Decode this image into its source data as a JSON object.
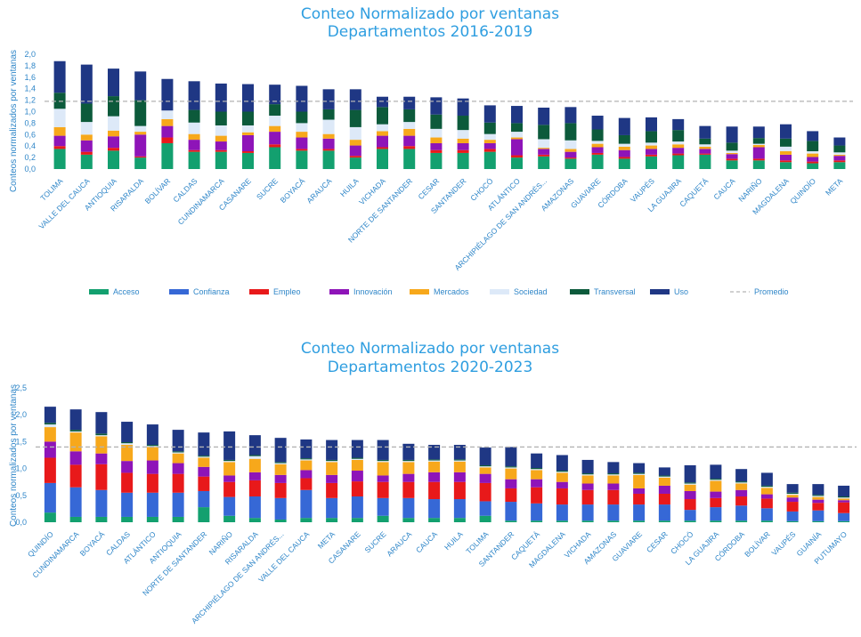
{
  "chart_data": [
    {
      "type": "bar",
      "stacked": true,
      "title_lines": [
        "Conteo Normalizado por ventanas",
        "Departamentos 2016-2019"
      ],
      "ylabel": "Conteos normalizados por ventanas",
      "ylim": [
        0,
        2.0
      ],
      "yticks": [
        "0,0",
        "0,2",
        "0,4",
        "0,6",
        "0,8",
        "1,0",
        "1,2",
        "1,4",
        "1,6",
        "1,8",
        "2,0"
      ],
      "average": 1.18,
      "legend": {
        "position": "bottom",
        "entries": [
          "Acceso",
          "Confianza",
          "Empleo",
          "Innovación",
          "Mercados",
          "Sociedad",
          "Transversal",
          "Uso",
          "Promedio"
        ]
      },
      "categories": [
        "TOLIMA",
        "VALLE DEL CAUCA",
        "ANTIOQUIA",
        "RISARALDA",
        "BOLÍVAR",
        "CALDAS",
        "CUNDINAMARCA",
        "CASANARE",
        "SUCRE",
        "BOYACÁ",
        "ARAUCA",
        "HUILA",
        "VICHADA",
        "NORTE DE SANTANDER",
        "CESAR",
        "SANTANDER",
        "CHOCÓ",
        "ATLÁNTICO",
        "ARCHIPIÉLAGO DE SAN ANDRÉS...",
        "AMAZONAS",
        "GUAVIARE",
        "CÓRDOBA",
        "VAUPÉS",
        "LA GUAJIRA",
        "CAQUETÁ",
        "CAUCA",
        "NARIÑO",
        "MAGDALENA",
        "QUINDÍO",
        "META"
      ],
      "series": [
        {
          "name": "Acceso",
          "color": "#13a06f",
          "values": [
            0.35,
            0.25,
            0.32,
            0.2,
            0.45,
            0.3,
            0.3,
            0.28,
            0.38,
            0.32,
            0.32,
            0.2,
            0.35,
            0.35,
            0.28,
            0.28,
            0.3,
            0.2,
            0.22,
            0.18,
            0.25,
            0.18,
            0.22,
            0.24,
            0.25,
            0.15,
            0.15,
            0.12,
            0.1,
            0.12
          ]
        },
        {
          "name": "Confianza",
          "color": "#3668d6",
          "values": [
            0,
            0,
            0,
            0,
            0,
            0,
            0,
            0,
            0,
            0,
            0,
            0,
            0,
            0,
            0,
            0,
            0,
            0,
            0,
            0,
            0,
            0,
            0,
            0,
            0,
            0,
            0,
            0,
            0,
            0
          ]
        },
        {
          "name": "Empleo",
          "color": "#e8191a",
          "values": [
            0.05,
            0.05,
            0.05,
            0.02,
            0.1,
            0.03,
            0.03,
            0.03,
            0.05,
            0.03,
            0.03,
            0.03,
            0.03,
            0.05,
            0.05,
            0.05,
            0.05,
            0.04,
            0.03,
            0.02,
            0.03,
            0.03,
            0.03,
            0.03,
            0.02,
            0.03,
            0.03,
            0.03,
            0.03,
            0.03
          ]
        },
        {
          "name": "Innovación",
          "color": "#8e14b8",
          "values": [
            0.18,
            0.2,
            0.2,
            0.38,
            0.2,
            0.18,
            0.15,
            0.28,
            0.22,
            0.2,
            0.18,
            0.18,
            0.2,
            0.18,
            0.12,
            0.12,
            0.1,
            0.28,
            0.1,
            0.1,
            0.1,
            0.12,
            0.1,
            0.1,
            0.08,
            0.08,
            0.2,
            0.1,
            0.08,
            0.08
          ]
        },
        {
          "name": "Mercados",
          "color": "#f7a81b",
          "values": [
            0.15,
            0.1,
            0.1,
            0.05,
            0.12,
            0.1,
            0.1,
            0.05,
            0.1,
            0.1,
            0.08,
            0.1,
            0.08,
            0.12,
            0.1,
            0.08,
            0.06,
            0.03,
            0.02,
            0.05,
            0.06,
            0.06,
            0.06,
            0.06,
            0.04,
            0.02,
            0.04,
            0.06,
            0.06,
            0.02
          ]
        },
        {
          "name": "Sociedad",
          "color": "#dde9f8",
          "values": [
            0.32,
            0.22,
            0.25,
            0.1,
            0.15,
            0.2,
            0.18,
            0.12,
            0.18,
            0.15,
            0.25,
            0.22,
            0.12,
            0.12,
            0.15,
            0.15,
            0.1,
            0.1,
            0.15,
            0.15,
            0.05,
            0.05,
            0.05,
            0.05,
            0.04,
            0.04,
            0.02,
            0.08,
            0.04,
            0.04
          ]
        },
        {
          "name": "Transversal",
          "color": "#0c5a3b",
          "values": [
            0.28,
            0.32,
            0.35,
            0.45,
            0.0,
            0.22,
            0.24,
            0.24,
            0.2,
            0.2,
            0.18,
            0.3,
            0.3,
            0.22,
            0.25,
            0.25,
            0.2,
            0.15,
            0.25,
            0.3,
            0.2,
            0.15,
            0.2,
            0.2,
            0.1,
            0.14,
            0.1,
            0.14,
            0.18,
            0.12
          ]
        },
        {
          "name": "Uso",
          "color": "#1f3784",
          "values": [
            0.55,
            0.68,
            0.48,
            0.5,
            0.55,
            0.5,
            0.49,
            0.48,
            0.34,
            0.45,
            0.35,
            0.36,
            0.18,
            0.22,
            0.3,
            0.3,
            0.3,
            0.3,
            0.3,
            0.28,
            0.24,
            0.3,
            0.24,
            0.19,
            0.22,
            0.28,
            0.2,
            0.25,
            0.17,
            0.14
          ]
        }
      ]
    },
    {
      "type": "bar",
      "stacked": true,
      "title_lines": [
        "Conteo Normalizado por ventanas",
        "Departamentos 2020-2023"
      ],
      "ylabel": "Conteos normalizados por ventanas",
      "ylim": [
        0,
        2.5
      ],
      "yticks": [
        "0,0",
        "0,5",
        "1,0",
        "1,5",
        "2,0",
        "2,5"
      ],
      "average": 1.4,
      "categories": [
        "QUINDÍO",
        "CUNDINAMARCA",
        "BOYACÁ",
        "CALDAS",
        "ATLÁNTICO",
        "ANTIOQUIA",
        "NORTE DE SANTANDER",
        "NARIÑO",
        "RISARALDA",
        "ARCHIPIÉLAGO DE SAN ANDRÉS...",
        "VALLE DEL CAUCA",
        "META",
        "CASANARE",
        "SUCRE",
        "ARAUCA",
        "CAUCA",
        "HUILA",
        "TOLIMA",
        "SANTANDER",
        "CAQUETÁ",
        "MAGDALENA",
        "VICHADA",
        "AMAZONAS",
        "GUAVIARE",
        "CESAR",
        "CHOCÓ",
        "LA GUAJIRA",
        "CÓRDOBA",
        "BOLÍVAR",
        "VAUPÉS",
        "GUAINÍA",
        "PUTUMAYO"
      ],
      "series": [
        {
          "name": "Acceso",
          "color": "#13a06f",
          "values": [
            0.18,
            0.1,
            0.1,
            0.1,
            0.1,
            0.1,
            0.28,
            0.12,
            0.08,
            0.05,
            0.08,
            0.08,
            0.08,
            0.12,
            0.08,
            0.08,
            0.08,
            0.12,
            0.03,
            0.03,
            0.03,
            0.03,
            0.03,
            0.03,
            0.03,
            0.03,
            0.03,
            0.03,
            0.03,
            0.02,
            0.02,
            0.02
          ]
        },
        {
          "name": "Confianza",
          "color": "#3668d6",
          "values": [
            0.55,
            0.55,
            0.5,
            0.45,
            0.45,
            0.45,
            0.3,
            0.35,
            0.4,
            0.4,
            0.52,
            0.37,
            0.4,
            0.33,
            0.37,
            0.35,
            0.35,
            0.27,
            0.35,
            0.32,
            0.3,
            0.3,
            0.3,
            0.3,
            0.3,
            0.2,
            0.25,
            0.28,
            0.23,
            0.18,
            0.2,
            0.15
          ]
        },
        {
          "name": "Empleo",
          "color": "#e8191a",
          "values": [
            0.47,
            0.42,
            0.48,
            0.37,
            0.35,
            0.35,
            0.27,
            0.28,
            0.3,
            0.28,
            0.22,
            0.28,
            0.28,
            0.3,
            0.3,
            0.32,
            0.32,
            0.34,
            0.25,
            0.3,
            0.3,
            0.27,
            0.27,
            0.2,
            0.2,
            0.2,
            0.17,
            0.17,
            0.18,
            0.18,
            0.14,
            0.2
          ]
        },
        {
          "name": "Innovación",
          "color": "#8e14b8",
          "values": [
            0.3,
            0.25,
            0.2,
            0.22,
            0.25,
            0.2,
            0.18,
            0.12,
            0.15,
            0.15,
            0.15,
            0.15,
            0.2,
            0.12,
            0.15,
            0.18,
            0.18,
            0.17,
            0.17,
            0.15,
            0.12,
            0.12,
            0.12,
            0.1,
            0.15,
            0.15,
            0.12,
            0.12,
            0.08,
            0.08,
            0.06,
            0.04
          ]
        },
        {
          "name": "Mercados",
          "color": "#f7a81b",
          "values": [
            0.27,
            0.35,
            0.32,
            0.3,
            0.25,
            0.18,
            0.17,
            0.25,
            0.25,
            0.2,
            0.18,
            0.24,
            0.2,
            0.25,
            0.22,
            0.2,
            0.2,
            0.12,
            0.2,
            0.17,
            0.17,
            0.15,
            0.15,
            0.25,
            0.15,
            0.12,
            0.2,
            0.12,
            0.12,
            0.05,
            0.05,
            0.03
          ]
        },
        {
          "name": "Sociedad",
          "color": "#dde9f8",
          "values": [
            0.05,
            0.02,
            0.02,
            0.03,
            0.02,
            0.02,
            0.02,
            0.02,
            0.05,
            0.02,
            0.02,
            0.02,
            0.02,
            0.02,
            0.02,
            0.02,
            0.02,
            0.02,
            0.02,
            0.02,
            0.02,
            0.02,
            0.02,
            0.02,
            0.02,
            0.02,
            0.02,
            0.02,
            0.02,
            0.02,
            0.02,
            0.02
          ]
        },
        {
          "name": "Transversal",
          "color": "#0c5a3b",
          "values": [
            0.03,
            0.03,
            0.03,
            0.02,
            0.02,
            0.02,
            0.02,
            0.02,
            0.02,
            0.02,
            0.02,
            0.02,
            0.02,
            0.02,
            0.02,
            0.02,
            0.02,
            0.02,
            0.02,
            0.02,
            0.02,
            0.02,
            0.02,
            0.02,
            0.02,
            0.02,
            0.02,
            0.02,
            0.02,
            0.02,
            0.02,
            0.02
          ]
        },
        {
          "name": "Uso",
          "color": "#1f3784",
          "values": [
            0.3,
            0.38,
            0.4,
            0.38,
            0.38,
            0.4,
            0.43,
            0.53,
            0.37,
            0.45,
            0.35,
            0.37,
            0.33,
            0.37,
            0.3,
            0.27,
            0.27,
            0.33,
            0.36,
            0.27,
            0.29,
            0.25,
            0.21,
            0.18,
            0.15,
            0.32,
            0.26,
            0.23,
            0.24,
            0.16,
            0.2,
            0.2
          ]
        }
      ]
    }
  ]
}
